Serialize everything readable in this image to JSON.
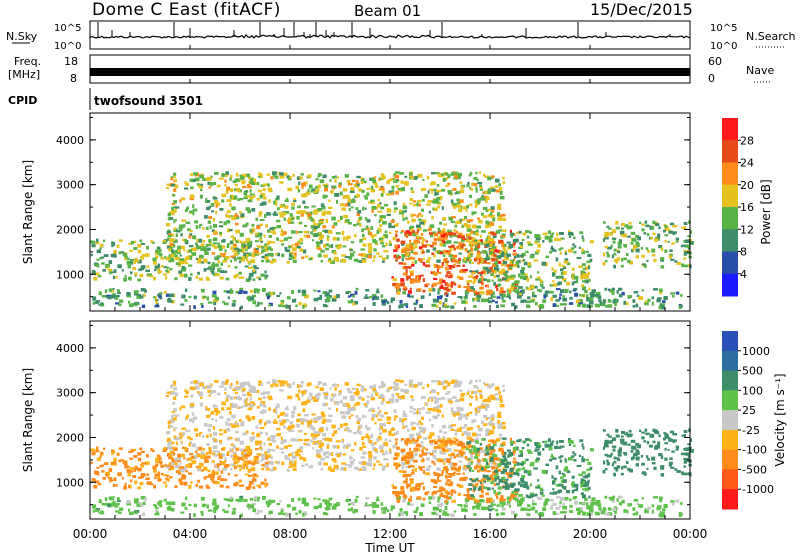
{
  "header": {
    "title": "Dome C East (fitACF)",
    "beam": "Beam 01",
    "date": "15/Dec/2015"
  },
  "strips": {
    "nsky_label": "N.Sky",
    "nsky_ticks": [
      "10^5",
      "10^0"
    ],
    "nsearch_label": "N.Search",
    "freq_label_line1": "Freq.",
    "freq_label_line2": "[MHz]",
    "freq_ticks": [
      "18",
      "8"
    ],
    "nave_label": "Nave",
    "nave_ticks": [
      "60",
      "0"
    ],
    "cpid_label": "CPID",
    "cpid_value": "twofsound 3501"
  },
  "power_panel": {
    "ylabel": "Slant Range [km]",
    "yticks": [
      "4000",
      "3000",
      "2000",
      "1000"
    ],
    "colorbar_label": "Power [dB]",
    "colorbar_ticks": [
      "28",
      "24",
      "20",
      "16",
      "12",
      "8",
      "4"
    ],
    "colors": [
      "#1a1aff",
      "#2a4fa8",
      "#3d8c6a",
      "#57b347",
      "#e6c21f",
      "#ff8c1a",
      "#e64a19",
      "#ff1a1a"
    ]
  },
  "velocity_panel": {
    "ylabel": "Slant Range [km]",
    "yticks": [
      "4000",
      "3000",
      "2000",
      "1000"
    ],
    "colorbar_label": "Velocity [m s⁻¹]",
    "colorbar_ticks": [
      "1000",
      "500",
      "100",
      "25",
      "-25",
      "-100",
      "-500",
      "-1000"
    ],
    "colors": [
      "#2a4fb8",
      "#2e6d9e",
      "#3d8c6a",
      "#5ec24a",
      "#c8c8c8",
      "#ffb31a",
      "#ff8c1a",
      "#ff5a1a",
      "#ff1a1a"
    ]
  },
  "xaxis": {
    "label": "Time UT",
    "ticks": [
      "00:00",
      "04:00",
      "08:00",
      "12:00",
      "16:00",
      "20:00",
      "00:00"
    ]
  },
  "chart_data": {
    "type": "heatmap",
    "title": "Dome C East (fitACF)",
    "subtitle": "Beam 01",
    "date": "15/Dec/2015",
    "xlabel": "Time UT",
    "ylabel": "Slant Range [km]",
    "x_range": [
      "00:00",
      "24:00"
    ],
    "ylim": [
      180,
      4600
    ],
    "power_scale": {
      "label": "Power [dB]",
      "range": [
        0,
        30
      ]
    },
    "velocity_scale": {
      "label": "Velocity [m s⁻¹]",
      "levels": [
        1000,
        500,
        100,
        25,
        -25,
        -100,
        -500,
        -1000
      ]
    },
    "echo_regions": [
      {
        "t_start": 0.0,
        "t_end": 23.8,
        "range_low": 300,
        "range_high": 700,
        "typical_power": 12,
        "typical_velocity": 50
      },
      {
        "t_start": 0.0,
        "t_end": 7.0,
        "range_low": 900,
        "range_high": 1800,
        "typical_power": 14,
        "typical_velocity": -150
      },
      {
        "t_start": 3.0,
        "t_end": 16.5,
        "range_low": 1300,
        "range_high": 3300,
        "typical_power": 16,
        "typical_velocity": -20
      },
      {
        "t_start": 12.0,
        "t_end": 17.0,
        "range_low": 600,
        "range_high": 2000,
        "typical_power": 24,
        "typical_velocity": -200
      },
      {
        "t_start": 15.0,
        "t_end": 20.0,
        "range_low": 700,
        "range_high": 2000,
        "typical_power": 14,
        "typical_velocity": 120
      },
      {
        "t_start": 20.5,
        "t_end": 24.0,
        "range_low": 1200,
        "range_high": 2200,
        "typical_power": 14,
        "typical_velocity": 300
      }
    ]
  }
}
